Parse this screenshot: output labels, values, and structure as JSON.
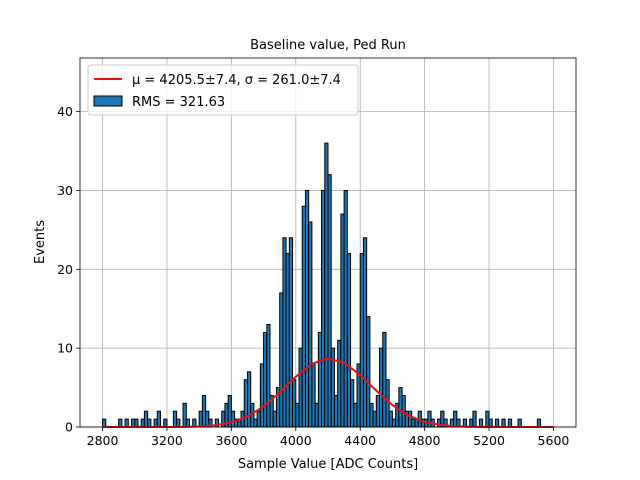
{
  "chart_data": {
    "type": "histogram",
    "title": "Baseline value, Ped Run",
    "xlabel": "Sample Value [ADC Counts]",
    "ylabel": "Events",
    "bins": [
      2800,
      2820,
      2840,
      2860,
      2880,
      2900,
      2920,
      2940,
      2960,
      2980,
      3000,
      3020,
      3040,
      3060,
      3080,
      3100,
      3120,
      3140,
      3160,
      3180,
      3200,
      3220,
      3240,
      3260,
      3280,
      3300,
      3320,
      3340,
      3360,
      3380,
      3400,
      3420,
      3440,
      3460,
      3480,
      3500,
      3520,
      3540,
      3560,
      3580,
      3600,
      3620,
      3640,
      3660,
      3680,
      3700,
      3720,
      3740,
      3760,
      3780,
      3800,
      3820,
      3840,
      3860,
      3880,
      3900,
      3920,
      3940,
      3960,
      3980,
      4000,
      4020,
      4040,
      4060,
      4080,
      4100,
      4120,
      4140,
      4160,
      4180,
      4200,
      4220,
      4240,
      4260,
      4280,
      4300,
      4320,
      4340,
      4360,
      4380,
      4400,
      4420,
      4440,
      4460,
      4480,
      4500,
      4520,
      4540,
      4560,
      4580,
      4600,
      4620,
      4640,
      4660,
      4680,
      4700,
      4720,
      4740,
      4760,
      4780,
      4800,
      4820,
      4840,
      4860,
      4880,
      4900,
      4920,
      4940,
      4960,
      4980,
      5000,
      5020,
      5040,
      5060,
      5080,
      5100,
      5120,
      5140,
      5160,
      5180,
      5200,
      5220,
      5240,
      5260,
      5280,
      5300,
      5320,
      5340,
      5360,
      5380,
      5400,
      5420,
      5440,
      5460,
      5480,
      5500,
      5520,
      5540,
      5560,
      5580,
      5600
    ],
    "counts": [
      1,
      0,
      0,
      0,
      0,
      1,
      0,
      1,
      0,
      1,
      1,
      0,
      1,
      2,
      1,
      0,
      1,
      2,
      0,
      1,
      0,
      0,
      2,
      1,
      0,
      3,
      1,
      0,
      1,
      0,
      2,
      4,
      2,
      1,
      0,
      1,
      0,
      2,
      3,
      4,
      2,
      1,
      1,
      2,
      6,
      7,
      3,
      1,
      2,
      8,
      12,
      13,
      4,
      2,
      5,
      17,
      24,
      22,
      24,
      6,
      3,
      10,
      28,
      30,
      26,
      8,
      3,
      12,
      30,
      36,
      32,
      10,
      4,
      11,
      27,
      30,
      22,
      6,
      3,
      8,
      22,
      24,
      14,
      3,
      2,
      4,
      10,
      12,
      6,
      2,
      1,
      3,
      5,
      4,
      2,
      2,
      1,
      1,
      2,
      1,
      1,
      2,
      1,
      0,
      1,
      2,
      1,
      0,
      1,
      2,
      1,
      0,
      1,
      0,
      1,
      2,
      0,
      1,
      0,
      2,
      1,
      0,
      1,
      0,
      1,
      0,
      1,
      0,
      0,
      1,
      0,
      0,
      0,
      0,
      0,
      1,
      0,
      0,
      0,
      0
    ],
    "hist_name": "RMS = 321.63",
    "hist_color": "#1f77b4",
    "hist_edge": "#000000",
    "fit": {
      "name": "μ = 4205.5±7.4, σ = 261.0±7.4",
      "color": "#ee1111",
      "x": [
        2800,
        2900,
        3000,
        3100,
        3200,
        3300,
        3400,
        3500,
        3600,
        3700,
        3800,
        3900,
        4000,
        4100,
        4200,
        4300,
        4400,
        4500,
        4600,
        4700,
        4800,
        4900,
        5000,
        5100,
        5200,
        5300,
        5400,
        5500,
        5600
      ],
      "y": [
        0,
        0,
        0,
        0,
        0.005,
        0.02,
        0.07,
        0.23,
        0.59,
        1.33,
        2.6,
        4.38,
        6.38,
        8.02,
        8.7,
        8.15,
        6.59,
        4.61,
        2.78,
        1.45,
        0.65,
        0.25,
        0.08,
        0.02,
        0,
        0,
        0,
        0,
        0
      ]
    },
    "xlim": [
      2660,
      5740
    ],
    "ylim": [
      0,
      46.8
    ],
    "xticks": [
      2800,
      3200,
      3600,
      4000,
      4400,
      4800,
      5200,
      5600
    ],
    "yticks": [
      0,
      10,
      20,
      30,
      40
    ],
    "grid": true,
    "legend": "upper left"
  }
}
